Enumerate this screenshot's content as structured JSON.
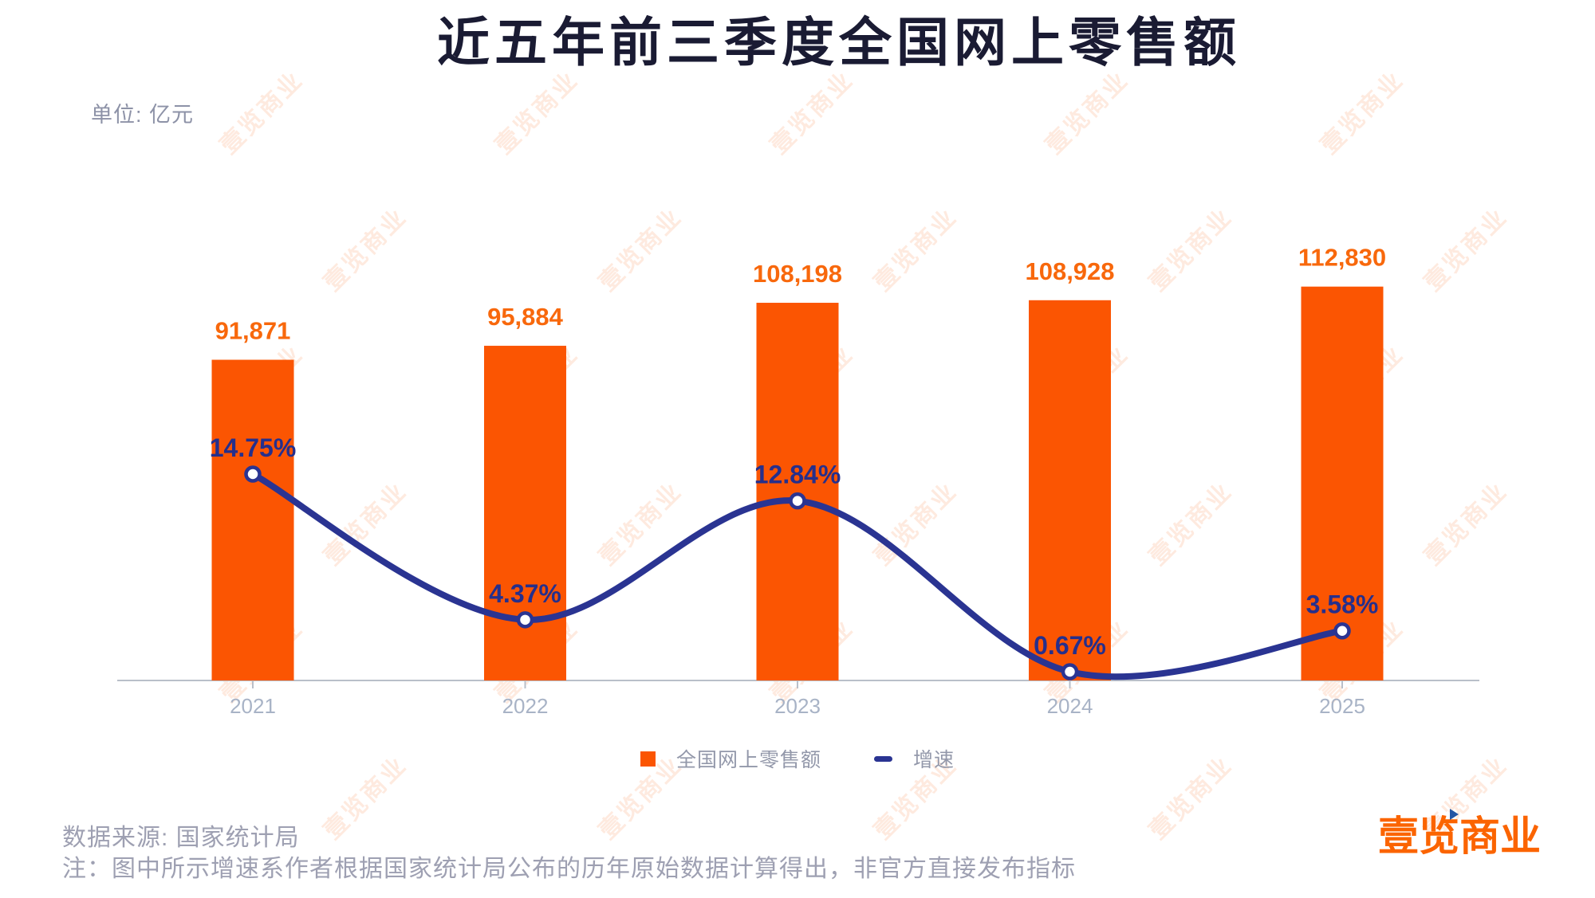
{
  "title": "近五年前三季度全国网上零售额",
  "unit_label": "单位: 亿元",
  "watermark_text": "壹览商业",
  "legend": {
    "bars_label": "全国网上零售额",
    "line_label": "增速"
  },
  "footer": {
    "source": "数据来源: 国家统计局",
    "note": "注：图中所示增速系作者根据国家统计局公布的历年原始数据计算得出，非官方直接发布指标"
  },
  "logo_text": "壹览商业",
  "colors": {
    "bar": "#fb5502",
    "bar_label": "#f8680c",
    "line": "#2a3492",
    "pct_label": "#252f8c",
    "axis": "#b9bfc9",
    "year_label": "#a8b3c6",
    "title": "#1a1b33",
    "unit_label": "#8d92a7",
    "legend_text": "#9398aa",
    "footer_text": "#9ea0b2",
    "logo": "#fb6400",
    "logo_triangle": "#2355a4",
    "watermark": "#fb5a05"
  },
  "chart_data": {
    "type": "bar+line",
    "title": "近五年前三季度全国网上零售额",
    "unit": "亿元",
    "categories": [
      "2021",
      "2022",
      "2023",
      "2024",
      "2025"
    ],
    "series": [
      {
        "name": "全国网上零售额",
        "type": "bar",
        "axis": "left-hidden",
        "values": [
          91871,
          95884,
          108198,
          108928,
          112830
        ],
        "labels": [
          "91,871",
          "95,884",
          "108,198",
          "108,928",
          "112,830"
        ]
      },
      {
        "name": "增速",
        "type": "line",
        "axis": "right-hidden",
        "values": [
          14.75,
          4.37,
          12.84,
          0.67,
          3.58
        ],
        "labels": [
          "14.75%",
          "4.37%",
          "12.84%",
          "0.67%",
          "3.58%"
        ]
      }
    ],
    "ylim_bars": [
      0,
      120000
    ],
    "ylim_line_pct": [
      0,
      16
    ],
    "grid": false,
    "legend_position": "bottom-center",
    "value_labels_shown": true
  }
}
